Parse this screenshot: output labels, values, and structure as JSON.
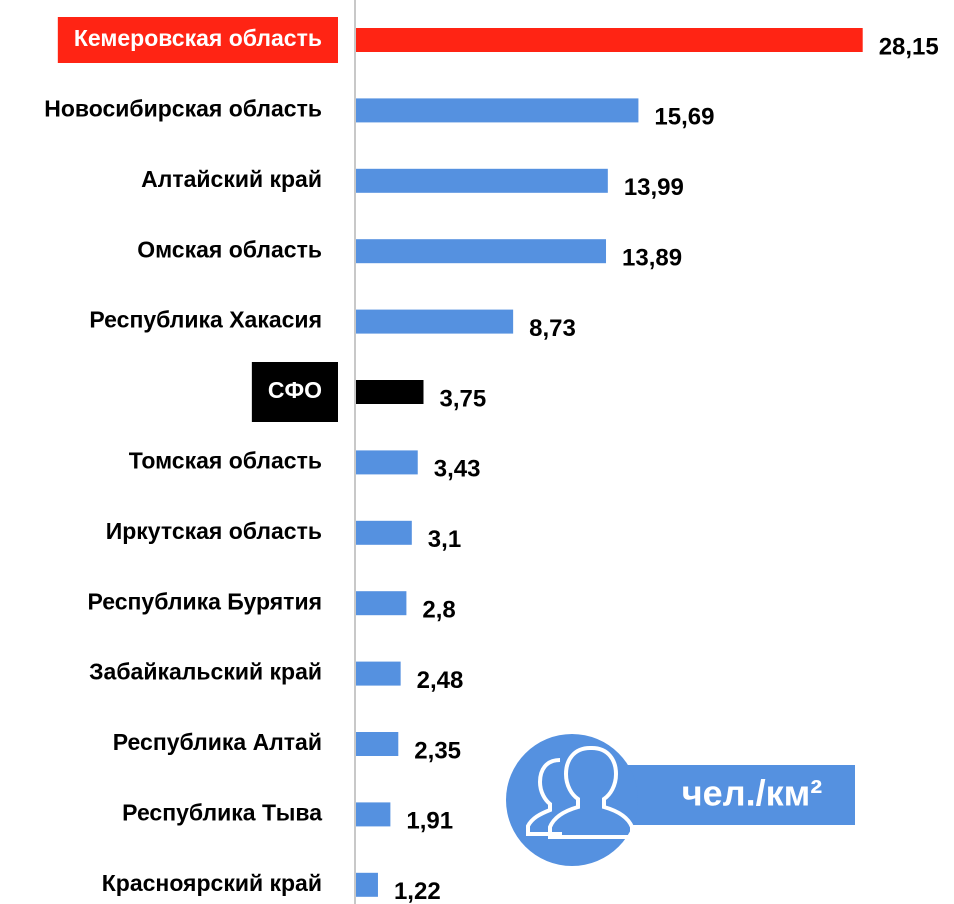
{
  "chart_data": {
    "type": "barh",
    "categories": [
      "Кемеровская область",
      "Новосибирская область",
      "Алтайский край",
      "Омская область",
      "Республика Хакасия",
      "СФО",
      "Томская область",
      "Иркутская область",
      "Республика Бурятия",
      "Забайкальский край",
      "Республика Алтай",
      "Республика Тыва",
      "Красноярский край"
    ],
    "values": [
      28.15,
      15.69,
      13.99,
      13.89,
      8.73,
      3.75,
      3.43,
      3.1,
      2.8,
      2.48,
      2.35,
      1.91,
      1.22
    ],
    "value_labels": [
      "28,15",
      "15,69",
      "13,99",
      "13,89",
      "8,73",
      "3,75",
      "3,43",
      "3,1",
      "2,8",
      "2,48",
      "2,35",
      "1,91",
      "1,22"
    ],
    "color": "#5591e0",
    "colors": [
      "#ff2414",
      "#5591e0",
      "#5591e0",
      "#5591e0",
      "#5591e0",
      "#000000",
      "#5591e0",
      "#5591e0",
      "#5591e0",
      "#5591e0",
      "#5591e0",
      "#5591e0",
      "#5591e0"
    ],
    "xlim": [
      0,
      30
    ],
    "annotation": "чел./км²"
  }
}
